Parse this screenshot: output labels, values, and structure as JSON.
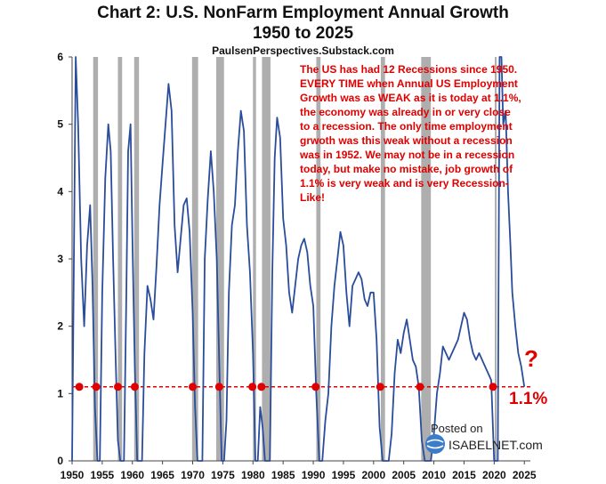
{
  "header": {
    "title_line1": "Chart 2: U.S. NonFarm Employment Annual Growth",
    "title_line2": "1950 to 2025",
    "subtitle": "PaulsenPerspectives.Substack.com"
  },
  "annotation": "The US has had 12 Recessions since 1950.  EVERY TIME when Annual US Employment Growth was as WEAK as it is today at 1.1%, the economy was already in or very close to a recession.  The only time employment grwoth was this weak without a recession was in 1952.  We may not be in a recession today, but make no mistake, job growth of 1.1% is very weak and is very Recession-Like!",
  "question_mark": "?",
  "current_level_label": "1.1%",
  "watermark": {
    "posted": "Posted on",
    "brand": "ISABELNET.com"
  },
  "colors": {
    "line": "#2a4d9b",
    "threshold": "#e00000",
    "recession": "#a0a0a0",
    "axis": "#444444"
  },
  "chart_data": {
    "type": "line",
    "title": "Chart 2: U.S. NonFarm Employment Annual Growth 1950 to 2025",
    "xlabel": "",
    "ylabel": "",
    "xlim": [
      1950,
      2026
    ],
    "ylim": [
      0,
      6
    ],
    "x_ticks": [
      1950,
      1955,
      1960,
      1965,
      1970,
      1975,
      1980,
      1985,
      1990,
      1995,
      2000,
      2005,
      2010,
      2015,
      2020,
      2025
    ],
    "y_ticks": [
      0,
      1,
      2,
      3,
      4,
      5,
      6
    ],
    "grid": false,
    "threshold": 1.1,
    "threshold_markers_x": [
      1951.2,
      1954.0,
      1957.6,
      1960.4,
      1970.0,
      1974.4,
      1979.9,
      1981.4,
      1990.4,
      2001.1,
      2007.7,
      2019.8
    ],
    "recessions": [
      [
        1953.5,
        1954.3
      ],
      [
        1957.6,
        1958.3
      ],
      [
        1960.3,
        1961.1
      ],
      [
        1969.9,
        1970.9
      ],
      [
        1973.9,
        1975.2
      ],
      [
        1980.0,
        1980.5
      ],
      [
        1981.5,
        1982.9
      ],
      [
        1990.5,
        1991.2
      ],
      [
        2001.2,
        2001.9
      ],
      [
        2007.9,
        2009.5
      ],
      [
        2020.1,
        2020.4
      ]
    ],
    "series": [
      {
        "name": "",
        "x": [
          1950.0,
          1950.6,
          1951.0,
          1951.5,
          1952.0,
          1952.5,
          1953.0,
          1953.4,
          1953.8,
          1954.2,
          1954.6,
          1955.0,
          1955.5,
          1956.0,
          1956.4,
          1956.8,
          1957.2,
          1957.6,
          1958.0,
          1958.3,
          1958.6,
          1959.0,
          1959.3,
          1959.7,
          1960.0,
          1960.4,
          1960.8,
          1961.2,
          1961.6,
          1962.0,
          1962.5,
          1963.0,
          1963.5,
          1964.0,
          1964.5,
          1965.0,
          1965.5,
          1966.0,
          1966.5,
          1967.0,
          1967.5,
          1968.0,
          1968.5,
          1969.0,
          1969.5,
          1970.0,
          1970.4,
          1970.8,
          1971.2,
          1971.6,
          1972.0,
          1972.5,
          1973.0,
          1973.5,
          1974.0,
          1974.4,
          1974.8,
          1975.2,
          1975.6,
          1976.0,
          1976.5,
          1977.0,
          1977.5,
          1978.0,
          1978.5,
          1979.0,
          1979.5,
          1980.0,
          1980.4,
          1980.8,
          1981.2,
          1981.6,
          1982.0,
          1982.4,
          1982.8,
          1983.2,
          1983.6,
          1984.0,
          1984.5,
          1985.0,
          1985.5,
          1986.0,
          1986.5,
          1987.0,
          1987.5,
          1988.0,
          1988.5,
          1989.0,
          1989.5,
          1990.0,
          1990.5,
          1991.0,
          1991.5,
          1992.0,
          1992.5,
          1993.0,
          1993.5,
          1994.0,
          1994.5,
          1995.0,
          1995.5,
          1996.0,
          1996.5,
          1997.0,
          1997.5,
          1998.0,
          1998.5,
          1999.0,
          1999.5,
          2000.0,
          2000.5,
          2001.0,
          2001.5,
          2002.0,
          2002.5,
          2003.0,
          2003.5,
          2004.0,
          2004.5,
          2005.0,
          2005.5,
          2006.0,
          2006.5,
          2007.0,
          2007.5,
          2008.0,
          2008.5,
          2009.0,
          2009.5,
          2010.0,
          2010.5,
          2011.0,
          2011.5,
          2012.0,
          2012.5,
          2013.0,
          2013.5,
          2014.0,
          2014.5,
          2015.0,
          2015.5,
          2016.0,
          2016.5,
          2017.0,
          2017.5,
          2018.0,
          2018.5,
          2019.0,
          2019.5,
          2020.0,
          2020.3,
          2020.6,
          2020.9,
          2021.2,
          2021.5,
          2021.9,
          2022.3,
          2022.7,
          2023.0,
          2023.5,
          2024.0,
          2024.5,
          2025.0
        ],
        "values": [
          0.0,
          6.0,
          5.0,
          3.0,
          2.0,
          3.2,
          3.8,
          2.6,
          0.8,
          0.0,
          0.0,
          2.5,
          4.2,
          5.0,
          4.6,
          3.0,
          1.6,
          0.3,
          0.0,
          0.0,
          0.0,
          2.5,
          4.6,
          5.0,
          3.3,
          1.4,
          0.0,
          0.0,
          0.0,
          1.6,
          2.6,
          2.4,
          2.1,
          2.9,
          3.8,
          4.4,
          5.0,
          5.6,
          5.2,
          3.5,
          2.8,
          3.3,
          3.8,
          3.9,
          3.4,
          2.2,
          0.8,
          0.0,
          0.0,
          0.0,
          3.0,
          3.9,
          4.6,
          4.0,
          3.0,
          1.5,
          0.0,
          0.0,
          0.6,
          2.5,
          3.5,
          3.8,
          4.6,
          5.2,
          4.9,
          3.5,
          2.8,
          1.6,
          0.0,
          0.0,
          0.8,
          0.5,
          0.0,
          0.0,
          0.0,
          2.8,
          4.5,
          5.1,
          4.8,
          3.6,
          3.2,
          2.5,
          2.2,
          2.6,
          3.0,
          3.2,
          3.3,
          3.1,
          2.6,
          2.3,
          1.0,
          0.0,
          0.0,
          0.6,
          1.0,
          2.0,
          2.6,
          3.0,
          3.4,
          3.2,
          2.5,
          2.0,
          2.6,
          2.7,
          2.8,
          2.7,
          2.4,
          2.3,
          2.5,
          2.5,
          1.8,
          0.5,
          0.0,
          0.0,
          0.0,
          0.4,
          1.3,
          1.8,
          1.6,
          1.9,
          2.1,
          1.8,
          1.5,
          1.4,
          1.1,
          0.3,
          0.0,
          0.0,
          0.0,
          0.4,
          1.0,
          1.3,
          1.7,
          1.6,
          1.5,
          1.6,
          1.7,
          1.8,
          2.0,
          2.2,
          2.1,
          1.8,
          1.6,
          1.5,
          1.6,
          1.5,
          1.4,
          1.3,
          1.2,
          0.0,
          0.0,
          0.0,
          6.0,
          6.0,
          5.0,
          5.2,
          4.0,
          3.2,
          2.5,
          2.0,
          1.6,
          1.4,
          1.1
        ]
      }
    ]
  }
}
